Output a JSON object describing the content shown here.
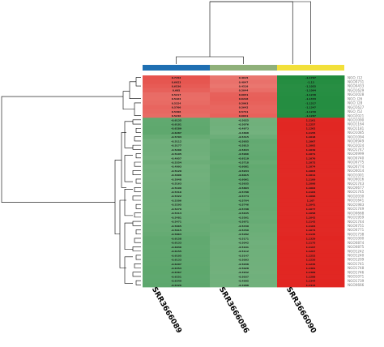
{
  "chart_data": {
    "type": "heatmap",
    "title": "",
    "columns": [
      "SRR3666089",
      "SRR3666086",
      "SRR3666090"
    ],
    "column_group_colors": [
      "#1f6fb2",
      "#8fb07a",
      "#f2e03a"
    ],
    "rows": [
      {
        "gene": "NGO_I12",
        "values": [
          0.7152,
          0.4615,
          -1.1767
        ]
      },
      {
        "gene": "NGO0731",
        "values": [
          0.6923,
          0.4847,
          -1.13
        ]
      },
      {
        "gene": "NGO0433",
        "values": [
          0.6536,
          0.4519,
          -1.1055
        ]
      },
      {
        "gene": "NGO1629",
        "values": [
          0.605,
          0.5044,
          -1.1094
        ]
      },
      {
        "gene": "NGO2028",
        "values": [
          0.5217,
          0.6031,
          -1.1248
        ]
      },
      {
        "gene": "NGO_I26",
        "values": [
          0.5164,
          0.6216,
          -1.1333
        ]
      },
      {
        "gene": "NGO_I28",
        "values": [
          0.5324,
          0.5993,
          -1.1317
        ]
      },
      {
        "gene": "NGO1627",
        "values": [
          0.5706,
          0.5642,
          -1.1347
        ]
      },
      {
        "gene": "NGO_I52",
        "values": [
          0.5496,
          0.5741,
          -1.1239
        ]
      },
      {
        "gene": "NGO2021",
        "values": [
          0.5246,
          0.6041,
          -1.1287
        ]
      },
      {
        "gene": "NGO1090",
        "values": [
          -0.6135,
          -0.5025,
          1.1161
        ]
      },
      {
        "gene": "NGO1164",
        "values": [
          -0.6181,
          -0.5076,
          1.1257
        ]
      },
      {
        "gene": "NGO1181",
        "values": [
          -0.6289,
          -0.4973,
          1.1262
        ]
      },
      {
        "gene": "NGO1085",
        "values": [
          -0.6287,
          -0.4868,
          1.1155
        ]
      },
      {
        "gene": "NGO1094",
        "values": [
          -0.5703,
          -0.5315,
          1.1018
        ]
      },
      {
        "gene": "NGO0949",
        "values": [
          -0.5112,
          -0.5955,
          1.1067
        ]
      },
      {
        "gene": "NGO2024",
        "values": [
          -0.5177,
          -0.5815,
          1.1092
        ]
      },
      {
        "gene": "NGO1747",
        "values": [
          -0.5206,
          -0.5843,
          1.1049
        ]
      },
      {
        "gene": "NGO0999",
        "values": [
          -0.5105,
          -0.5966,
          1.1071
        ]
      },
      {
        "gene": "NGO0740",
        "values": [
          -0.4957,
          -0.6119,
          1.1076
        ]
      },
      {
        "gene": "NGO0775",
        "values": [
          -0.5354,
          -0.5718,
          1.1072
        ]
      },
      {
        "gene": "NGO0774",
        "values": [
          -0.4993,
          -0.6081,
          1.1074
        ]
      },
      {
        "gene": "NGO0014",
        "values": [
          -0.5129,
          -0.5934,
          1.1063
        ]
      },
      {
        "gene": "NGO1001",
        "values": [
          -0.4996,
          -0.6015,
          1.1011
        ]
      },
      {
        "gene": "NGO0016",
        "values": [
          -0.5048,
          -0.6061,
          1.1109
        ]
      },
      {
        "gene": "NGO1743",
        "values": [
          -0.5163,
          -0.5935,
          1.1098
        ]
      },
      {
        "gene": "NGO0677",
        "values": [
          -0.5199,
          -0.5863,
          1.1062
        ]
      },
      {
        "gene": "NGO1745",
        "values": [
          -0.5316,
          -0.5788,
          1.1104
        ]
      },
      {
        "gene": "NGO2030",
        "values": [
          -0.5322,
          -0.5774,
          1.1096
        ]
      },
      {
        "gene": "NGO1641",
        "values": [
          -0.5306,
          -0.5764,
          1.107
        ]
      },
      {
        "gene": "NGO1983",
        "values": [
          -0.5295,
          -0.5746,
          1.1041
        ]
      },
      {
        "gene": "NGO1749",
        "values": [
          -0.5279,
          -0.5798,
          1.1077
        ]
      },
      {
        "gene": "NGO0668",
        "values": [
          -0.5413,
          -0.5645,
          1.1058
        ]
      },
      {
        "gene": "NGO1959",
        "values": [
          -0.5481,
          -0.5561,
          1.1042
        ]
      },
      {
        "gene": "NGO1744",
        "values": [
          -0.5471,
          -0.5671,
          1.1142
        ]
      },
      {
        "gene": "NGO0751",
        "values": [
          -0.5665,
          -0.5439,
          1.1104
        ]
      },
      {
        "gene": "NGO0771",
        "values": [
          -0.5615,
          -0.5459,
          1.1074
        ]
      },
      {
        "gene": "NGO1738",
        "values": [
          -0.5863,
          -0.5282,
          1.1145
        ]
      },
      {
        "gene": "NGO1000",
        "values": [
          -0.6158,
          -0.5171,
          1.1329
        ]
      },
      {
        "gene": "NGO0874",
        "values": [
          -0.6133,
          -0.5042,
          1.1175
        ]
      },
      {
        "gene": "NGO0875",
        "values": [
          -0.6036,
          -0.5161,
          1.1197
        ]
      },
      {
        "gene": "NGO1242",
        "values": [
          -0.6155,
          -0.5112,
          1.1267
        ]
      },
      {
        "gene": "NGO1240",
        "values": [
          -0.6105,
          -0.5147,
          1.1252
        ]
      },
      {
        "gene": "NGO1209",
        "values": [
          -0.6133,
          -0.5093,
          1.1226
        ]
      },
      {
        "gene": "NGO1741",
        "values": [
          -0.6207,
          -0.5038,
          1.1245
        ]
      },
      {
        "gene": "NGO1748",
        "values": [
          -0.6353,
          -0.5028,
          1.1381
        ]
      },
      {
        "gene": "NGO1746",
        "values": [
          -0.6367,
          -0.4942,
          1.1309
        ]
      },
      {
        "gene": "NGO1071",
        "values": [
          -0.6251,
          -0.5037,
          1.1288
        ]
      },
      {
        "gene": "NGO1739",
        "values": [
          -0.6349,
          -0.4995,
          1.1344
        ]
      },
      {
        "gene": "NGO0666",
        "values": [
          -0.6426,
          -0.4988,
          1.1414
        ]
      }
    ],
    "color_scale": {
      "min_color": "#1e8a3c",
      "mid_color": "#f7efe4",
      "max_color": "#e0201c",
      "range": [
        -1.2,
        1.2
      ]
    },
    "cluster_dendrogram": true,
    "legend": "none"
  }
}
